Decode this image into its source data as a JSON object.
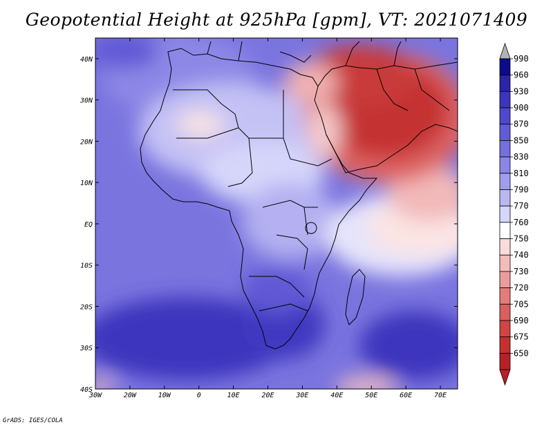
{
  "title": "Geopotential Height at 925hPa [gpm], VT: 2021071409",
  "credit": "GrADS: IGES/COLA",
  "map": {
    "lon_range": [
      -30,
      75
    ],
    "lat_range": [
      -40,
      45
    ],
    "lon_ticks": [
      "30W",
      "20W",
      "10W",
      "0",
      "10E",
      "20E",
      "30E",
      "40E",
      "50E",
      "60E",
      "70E"
    ],
    "lat_ticks": [
      "40S",
      "30S",
      "20S",
      "10S",
      "EQ",
      "10N",
      "20N",
      "30N",
      "40N"
    ]
  },
  "colorbar": {
    "levels": [
      "990",
      "960",
      "930",
      "900",
      "870",
      "850",
      "830",
      "810",
      "790",
      "770",
      "760",
      "750",
      "740",
      "730",
      "720",
      "705",
      "690",
      "675",
      "650"
    ],
    "colors": [
      "#0d0b8c",
      "#2b23a8",
      "#3d35bd",
      "#4f47cc",
      "#625ad6",
      "#7670df",
      "#8a85e6",
      "#a19ded",
      "#bab7f3",
      "#d6d5fa",
      "#ffffff",
      "#f8dcdc",
      "#f3bcbc",
      "#ec9c9c",
      "#e47c7c",
      "#db5e5e",
      "#d14545",
      "#c53030",
      "#b81f26"
    ],
    "over_color": "#b3b3b3",
    "under_color": "#b81f26"
  }
}
